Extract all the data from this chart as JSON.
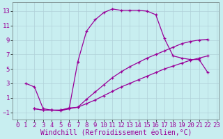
{
  "xlabel": "Windchill (Refroidissement éolien,°C)",
  "bg_color": "#c8eef0",
  "line_color": "#990099",
  "grid_color": "#b0d0d8",
  "xlim": [
    -0.5,
    23.3
  ],
  "ylim": [
    -2.0,
    14.2
  ],
  "xticks": [
    0,
    1,
    2,
    3,
    4,
    5,
    6,
    7,
    8,
    9,
    10,
    11,
    12,
    13,
    14,
    15,
    16,
    17,
    18,
    19,
    20,
    21,
    22,
    23
  ],
  "yticks": [
    -1,
    1,
    3,
    5,
    7,
    9,
    11,
    13
  ],
  "line1_x": [
    1,
    2,
    3,
    4,
    5,
    6,
    7,
    8,
    9,
    10,
    11,
    12,
    13,
    14,
    15,
    16,
    17,
    18,
    19,
    20,
    21,
    22
  ],
  "line1_y": [
    3.0,
    2.5,
    -0.5,
    -0.7,
    -0.8,
    -0.5,
    6.0,
    10.2,
    11.8,
    12.8,
    13.3,
    13.1,
    13.1,
    13.1,
    13.0,
    12.5,
    9.2,
    6.8,
    6.5,
    6.3,
    6.3,
    4.5
  ],
  "line2_x": [
    2,
    3,
    4,
    5,
    6,
    7,
    8,
    9,
    10,
    11,
    12,
    13,
    14,
    15,
    16,
    17,
    18,
    19,
    20,
    21,
    22
  ],
  "line2_y": [
    -0.5,
    -0.7,
    -0.7,
    -0.7,
    -0.5,
    -0.3,
    0.8,
    1.8,
    2.8,
    3.8,
    4.6,
    5.3,
    5.9,
    6.5,
    7.0,
    7.5,
    8.0,
    8.5,
    8.8,
    9.0,
    9.1
  ],
  "line3_x": [
    2,
    3,
    4,
    5,
    6,
    7,
    8,
    9,
    10,
    11,
    12,
    13,
    14,
    15,
    16,
    17,
    18,
    19,
    20,
    21,
    22
  ],
  "line3_y": [
    -0.5,
    -0.7,
    -0.7,
    -0.7,
    -0.4,
    -0.3,
    0.2,
    0.7,
    1.3,
    1.9,
    2.5,
    3.0,
    3.5,
    4.0,
    4.5,
    5.0,
    5.4,
    5.8,
    6.2,
    6.5,
    6.8
  ],
  "font": "monospace",
  "xlabel_fontsize": 7.0,
  "tick_fontsize": 6.5
}
